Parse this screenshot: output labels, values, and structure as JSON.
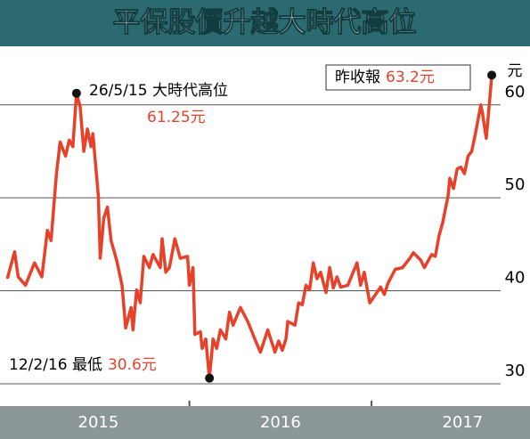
{
  "chart_data": {
    "type": "line",
    "title": "平保股價升越大時代高位",
    "y_unit": "元",
    "xlim": [
      2014.96,
      2017.87
    ],
    "ylim": [
      27.6,
      66.3
    ],
    "xticks": [
      {
        "value": 2015.5,
        "label": "2015"
      },
      {
        "value": 2016.5,
        "label": "2016"
      },
      {
        "value": 2017.5,
        "label": "2017"
      }
    ],
    "yticks": [
      30,
      40,
      50,
      60
    ],
    "grid": true,
    "series": [
      {
        "color": "#e8412a",
        "x": [
          2015.0,
          2015.04,
          2015.06,
          2015.1,
          2015.15,
          2015.19,
          2015.22,
          2015.24,
          2015.27,
          2015.29,
          2015.32,
          2015.34,
          2015.36,
          2015.38,
          2015.4,
          2015.42,
          2015.44,
          2015.46,
          2015.47,
          2015.5,
          2015.51,
          2015.53,
          2015.55,
          2015.57,
          2015.6,
          2015.63,
          2015.65,
          2015.68,
          2015.69,
          2015.71,
          2015.73,
          2015.75,
          2015.78,
          2015.8,
          2015.84,
          2015.85,
          2015.87,
          2015.89,
          2015.92,
          2015.95,
          2015.99,
          2016.0,
          2016.02,
          2016.03,
          2016.06,
          2016.07,
          2016.09,
          2016.11,
          2016.13,
          2016.15,
          2016.17,
          2016.2,
          2016.22,
          2016.24,
          2016.28,
          2016.32,
          2016.37,
          2016.39,
          2016.43,
          2016.47,
          2016.49,
          2016.51,
          2016.53,
          2016.54,
          2016.58,
          2016.6,
          2016.62,
          2016.64,
          2016.66,
          2016.68,
          2016.7,
          2016.72,
          2016.75,
          2016.77,
          2016.79,
          2016.81,
          2016.83,
          2016.87,
          2016.92,
          2016.94,
          2016.96,
          2016.99,
          2017.05,
          2017.07,
          2017.09,
          2017.13,
          2017.17,
          2017.21,
          2017.23,
          2017.27,
          2017.29,
          2017.33,
          2017.35,
          2017.37,
          2017.39,
          2017.42,
          2017.43,
          2017.45,
          2017.47,
          2017.49,
          2017.51,
          2017.53,
          2017.55,
          2017.57,
          2017.58,
          2017.6,
          2017.61,
          2017.63,
          2017.65,
          2017.66
        ],
        "values": [
          41.3,
          44.2,
          41.5,
          40.6,
          43.0,
          41.5,
          46.5,
          45.4,
          52.6,
          56.0,
          54.5,
          56.2,
          55.5,
          61.25,
          59.8,
          55.0,
          57.4,
          55.5,
          56.9,
          50.2,
          43.5,
          47.8,
          49.0,
          45.4,
          43.3,
          40.6,
          36.0,
          38.2,
          35.8,
          40.1,
          38.7,
          43.7,
          42.5,
          43.9,
          42.5,
          45.6,
          42.0,
          42.5,
          45.6,
          43.5,
          43.7,
          40.6,
          42.5,
          35.3,
          35.6,
          33.8,
          34.8,
          30.6,
          34.8,
          33.8,
          35.8,
          34.8,
          37.7,
          36.3,
          38.2,
          36.7,
          34.3,
          33.4,
          35.8,
          33.4,
          34.6,
          33.6,
          34.8,
          36.7,
          36.3,
          38.7,
          38.5,
          40.6,
          40.1,
          43.0,
          41.3,
          42.0,
          39.8,
          42.5,
          40.3,
          41.5,
          40.4,
          40.6,
          43.0,
          40.6,
          42.0,
          38.7,
          40.4,
          39.6,
          40.8,
          42.3,
          42.5,
          43.5,
          44.1,
          43.3,
          42.5,
          43.9,
          43.7,
          45.9,
          47.3,
          50.2,
          52.1,
          51.0,
          53.1,
          53.3,
          52.6,
          54.5,
          55.0,
          56.9,
          57.9,
          60.0,
          59.0,
          56.4,
          60.8,
          63.2
        ]
      }
    ],
    "annotations": [
      {
        "text": "26/5/15 大時代高位",
        "value_label": "61.25元",
        "x": 2015.38,
        "y": 61.25
      },
      {
        "text": "12/2/16 最低",
        "value_label": "30.6元",
        "x": 2016.11,
        "y": 30.6
      },
      {
        "text": "昨收報",
        "value_label": "63.2元",
        "x": 2017.66,
        "y": 63.2
      }
    ]
  }
}
